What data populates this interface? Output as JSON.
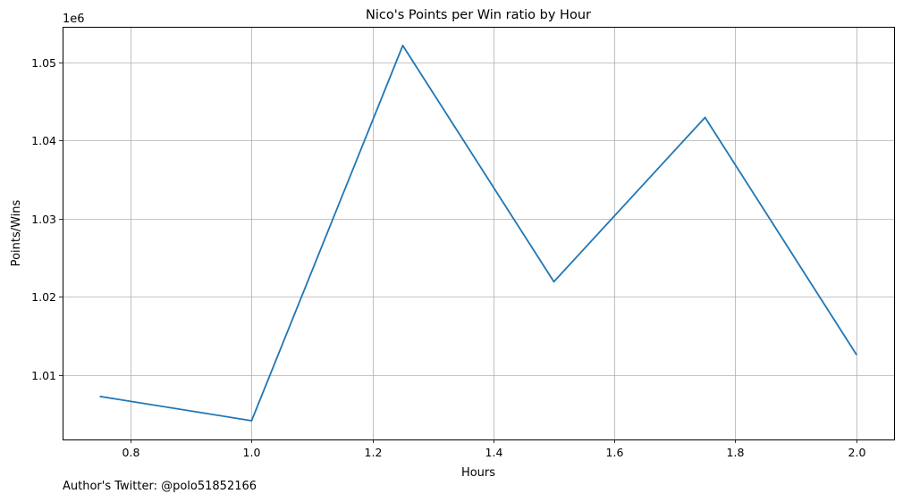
{
  "chart_data": {
    "type": "line",
    "title": "Nico's Points per Win ratio by Hour",
    "xlabel": "Hours",
    "ylabel": "Points/Wins",
    "y_offset_label": "1e6",
    "x": [
      0.75,
      1.0,
      1.25,
      1.5,
      1.75,
      2.0
    ],
    "series": [
      {
        "values": [
          1.00727,
          1.00417,
          1.05215,
          1.02195,
          1.04295,
          1.01267
        ],
        "color": "#1f77b4"
      }
    ],
    "xlim": [
      0.6875,
      2.0625
    ],
    "ylim": [
      1.00177,
      1.05455
    ],
    "x_ticks": [
      0.8,
      1.0,
      1.2,
      1.4,
      1.6,
      1.8,
      2.0
    ],
    "x_tick_labels": [
      "0.8",
      "1.0",
      "1.2",
      "1.4",
      "1.6",
      "1.8",
      "2.0"
    ],
    "y_ticks": [
      1.01,
      1.02,
      1.03,
      1.04,
      1.05
    ],
    "y_tick_labels": [
      "1.01",
      "1.02",
      "1.03",
      "1.04",
      "1.05"
    ],
    "grid": true
  },
  "footer": {
    "author_text": "Author's Twitter: @polo51852166"
  }
}
